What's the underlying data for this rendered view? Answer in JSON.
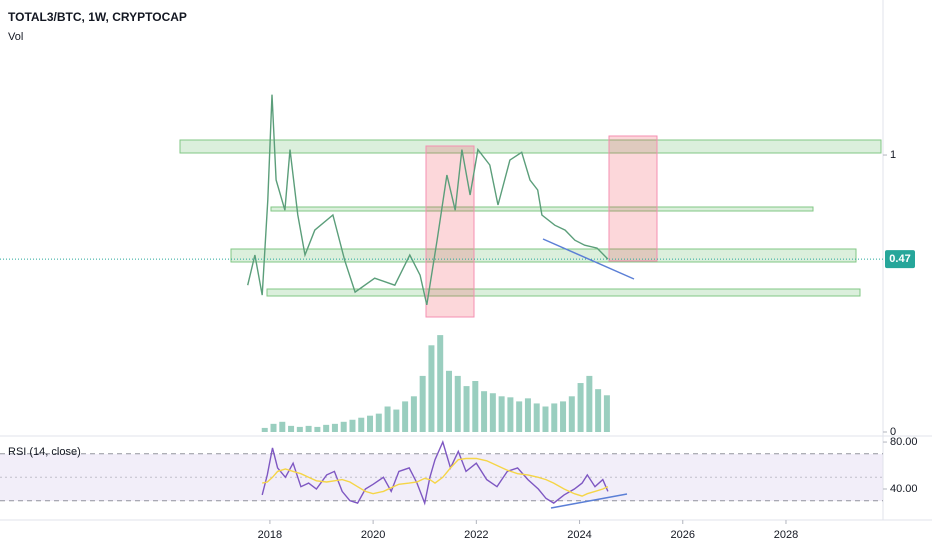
{
  "chart_data": [
    {
      "type": "line",
      "title": "TOTAL3/BTC, 1W, CRYPTOCAP",
      "log_scale": true,
      "xlim": [
        2012.77,
        2029.88
      ],
      "ylim": [
        0.243,
        3.08
      ],
      "yticks": [
        1
      ],
      "last_value": 0.47,
      "last_color": "#26a69a",
      "x": [
        2017.57,
        2017.71,
        2017.85,
        2017.96,
        2018.04,
        2018.12,
        2018.29,
        2018.39,
        2018.54,
        2018.68,
        2018.87,
        2019.22,
        2019.45,
        2019.65,
        2020.03,
        2020.42,
        2020.71,
        2020.91,
        2021.04,
        2021.24,
        2021.43,
        2021.59,
        2021.72,
        2021.88,
        2022.03,
        2022.26,
        2022.42,
        2022.65,
        2022.88,
        2023.04,
        2023.19,
        2023.27,
        2023.52,
        2023.72,
        2023.91,
        2024.1,
        2024.34,
        2024.55
      ],
      "series": [
        {
          "color": "#5b9e7a",
          "values": [
            0.389,
            0.484,
            0.362,
            0.721,
            1.55,
            0.834,
            0.67,
            1.04,
            0.647,
            0.484,
            0.58,
            0.647,
            0.466,
            0.37,
            0.409,
            0.389,
            0.484,
            0.418,
            0.337,
            0.539,
            0.865,
            0.67,
            1.04,
            0.748,
            1.04,
            0.93,
            0.696,
            0.964,
            1.02,
            0.834,
            0.776,
            0.647,
            0.601,
            0.58,
            0.539,
            0.52,
            0.509,
            0.47
          ]
        }
      ]
    },
    {
      "type": "bar",
      "title": "Vol",
      "xlim": [
        2012.77,
        2029.88
      ],
      "ylim": [
        0,
        100
      ],
      "yticks": [
        0
      ],
      "color": "rgba(120,190,170,0.75)",
      "x": [
        2017.9,
        2018.07,
        2018.24,
        2018.41,
        2018.58,
        2018.75,
        2018.92,
        2019.09,
        2019.26,
        2019.43,
        2019.6,
        2019.77,
        2019.94,
        2020.11,
        2020.28,
        2020.45,
        2020.62,
        2020.79,
        2020.96,
        2021.13,
        2021.3,
        2021.47,
        2021.64,
        2021.81,
        2021.98,
        2022.15,
        2022.32,
        2022.49,
        2022.66,
        2022.83,
        2023.0,
        2023.17,
        2023.34,
        2023.51,
        2023.68,
        2023.85,
        2024.02,
        2024.19,
        2024.36,
        2024.53
      ],
      "values": [
        4,
        8,
        10,
        6,
        5,
        6,
        5,
        7,
        8,
        10,
        12,
        14,
        16,
        18,
        25,
        22,
        30,
        35,
        55,
        85,
        95,
        60,
        55,
        45,
        50,
        40,
        38,
        35,
        34,
        30,
        33,
        28,
        25,
        28,
        30,
        35,
        48,
        55,
        42,
        36
      ]
    },
    {
      "type": "line",
      "title": "RSI (14, close)",
      "xlim": [
        2012.77,
        2029.88
      ],
      "ylim": [
        13.6,
        84.3
      ],
      "yticks": [
        {
          "value": 80,
          "label": "80.00"
        },
        {
          "value": 40,
          "label": "40.00"
        }
      ],
      "bands": [
        30,
        50,
        70
      ],
      "xticks": [
        2018,
        2020,
        2022,
        2024,
        2026,
        2028
      ],
      "x": [
        2017.85,
        2017.95,
        2018.05,
        2018.15,
        2018.3,
        2018.45,
        2018.6,
        2018.75,
        2018.9,
        2019.1,
        2019.25,
        2019.4,
        2019.55,
        2019.7,
        2019.85,
        2020.0,
        2020.2,
        2020.35,
        2020.5,
        2020.7,
        2020.85,
        2021.0,
        2021.1,
        2021.2,
        2021.35,
        2021.5,
        2021.65,
        2021.8,
        2022.0,
        2022.2,
        2022.4,
        2022.6,
        2022.8,
        2023.0,
        2023.2,
        2023.35,
        2023.5,
        2023.7,
        2023.9,
        2024.05,
        2024.15,
        2024.3,
        2024.45,
        2024.55
      ],
      "series": [
        {
          "color": "#7e57c2",
          "values": [
            35,
            52,
            75,
            58,
            50,
            62,
            42,
            45,
            40,
            52,
            55,
            38,
            30,
            28,
            40,
            44,
            50,
            38,
            55,
            58,
            45,
            28,
            50,
            65,
            80,
            58,
            72,
            55,
            62,
            48,
            42,
            55,
            58,
            48,
            40,
            32,
            28,
            35,
            40,
            45,
            52,
            42,
            48,
            38
          ]
        },
        {
          "color": "#f5d547",
          "values": [
            45,
            46,
            50,
            55,
            57,
            55,
            53,
            50,
            47,
            46,
            47,
            48,
            46,
            42,
            38,
            36,
            38,
            41,
            44,
            45,
            46,
            49,
            48,
            45,
            50,
            58,
            65,
            66,
            66,
            64,
            60,
            56,
            53,
            52,
            50,
            48,
            45,
            40,
            36,
            34,
            36,
            38,
            40,
            42
          ]
        }
      ]
    }
  ]
}
